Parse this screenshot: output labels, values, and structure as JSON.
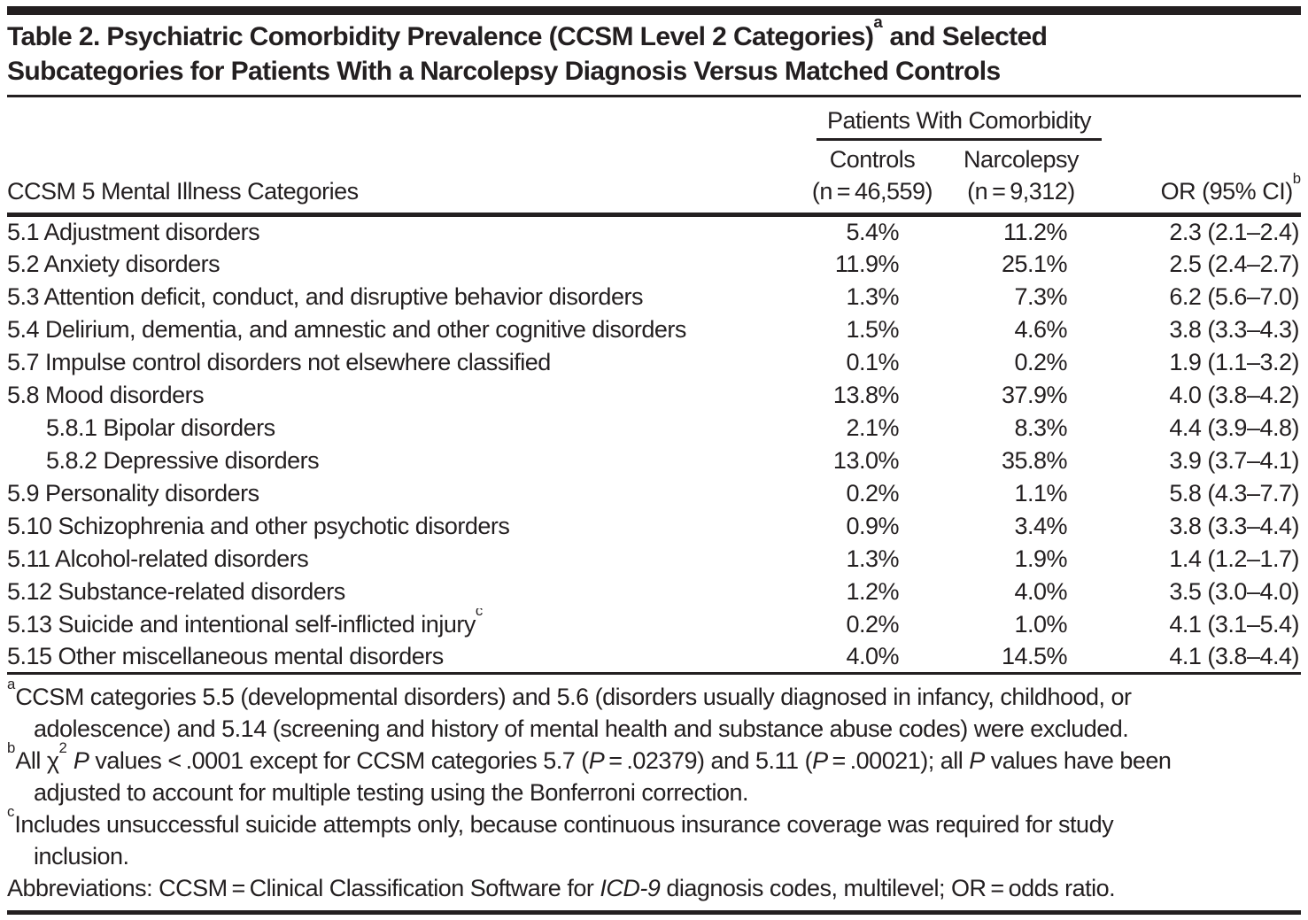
{
  "colors": {
    "text": "#231f20",
    "rule": "#231f20",
    "background": "#ffffff"
  },
  "title_rich": [
    {
      "t": "Table 2. Psychiatric Comorbidity Prevalence (CCSM Level 2 Categories)"
    },
    {
      "t": "a",
      "s": "sup"
    },
    {
      "t": " and Selected\nSubcategories for Patients With a Narcolepsy Diagnosis Versus Matched Controls"
    }
  ],
  "table": {
    "span_header": "Patients With Comorbidity",
    "category_header": "CCSM 5 Mental Illness Categories",
    "controls_header": {
      "line1": "Controls",
      "line2": "(n = 46,559)"
    },
    "narcolepsy_header": {
      "line1": "Narcolepsy",
      "line2": "(n = 9,312)"
    },
    "or_header_rich": [
      {
        "t": "OR (95% CI)"
      },
      {
        "t": "b",
        "s": "sup"
      }
    ],
    "rows": [
      {
        "category": "5.1 Adjustment disorders",
        "controls": "5.4%",
        "narcolepsy": "11.2%",
        "or": "2.3 (2.1–2.4)"
      },
      {
        "category": "5.2 Anxiety disorders",
        "controls": "11.9%",
        "narcolepsy": "25.1%",
        "or": "2.5 (2.4–2.7)"
      },
      {
        "category": "5.3 Attention deficit, conduct, and disruptive behavior disorders",
        "controls": "1.3%",
        "narcolepsy": "7.3%",
        "or": "6.2 (5.6–7.0)"
      },
      {
        "category": "5.4 Delirium, dementia, and amnestic and other cognitive disorders",
        "controls": "1.5%",
        "narcolepsy": "4.6%",
        "or": "3.8 (3.3–4.3)"
      },
      {
        "category": "5.7 Impulse control disorders not elsewhere classified",
        "controls": "0.1%",
        "narcolepsy": "0.2%",
        "or": "1.9 (1.1–3.2)"
      },
      {
        "category": "5.8 Mood disorders",
        "controls": "13.8%",
        "narcolepsy": "37.9%",
        "or": "4.0 (3.8–4.2)"
      },
      {
        "category": "5.8.1 Bipolar disorders",
        "controls": "2.1%",
        "narcolepsy": "8.3%",
        "or": "4.4 (3.9–4.8)"
      },
      {
        "category": "5.8.2 Depressive disorders",
        "controls": "13.0%",
        "narcolepsy": "35.8%",
        "or": "3.9 (3.7–4.1)"
      },
      {
        "category": "5.9 Personality disorders",
        "controls": "0.2%",
        "narcolepsy": "1.1%",
        "or": "5.8 (4.3–7.7)"
      },
      {
        "category": "5.10 Schizophrenia and other psychotic disorders",
        "controls": "0.9%",
        "narcolepsy": "3.4%",
        "or": "3.8 (3.3–4.4)"
      },
      {
        "category": "5.11 Alcohol-related disorders",
        "controls": "1.3%",
        "narcolepsy": "1.9%",
        "or": "1.4 (1.2–1.7)"
      },
      {
        "category": "5.12 Substance-related disorders",
        "controls": "1.2%",
        "narcolepsy": "4.0%",
        "or": "3.5 (3.0–4.0)"
      },
      {
        "category_rich": [
          {
            "t": "5.13 Suicide and intentional self-inflicted injury"
          },
          {
            "t": "c",
            "s": "sup"
          }
        ],
        "controls": "0.2%",
        "narcolepsy": "1.0%",
        "or": "4.1 (3.1–5.4)"
      },
      {
        "category": "5.15 Other miscellaneous mental disorders",
        "controls": "4.0%",
        "narcolepsy": "14.5%",
        "or": "4.1 (3.8–4.4)"
      }
    ]
  },
  "footnotes": {
    "a_rich": [
      {
        "t": "a",
        "s": "sup"
      },
      {
        "t": "CCSM categories 5.5 (developmental disorders) and 5.6 (disorders usually diagnosed in infancy, childhood, or\nadolescence) and 5.14 (screening and history of mental health and substance abuse codes) were excluded."
      }
    ],
    "b_rich": [
      {
        "t": "b",
        "s": "sup"
      },
      {
        "t": "All χ"
      },
      {
        "t": "2",
        "s": "sup"
      },
      {
        "t": " "
      },
      {
        "t": "P",
        "s": "i"
      },
      {
        "t": " values < .0001 except for CCSM categories 5.7 ("
      },
      {
        "t": "P",
        "s": "i"
      },
      {
        "t": " = .02379) and 5.11 ("
      },
      {
        "t": "P",
        "s": "i"
      },
      {
        "t": " = .00021); all "
      },
      {
        "t": "P",
        "s": "i"
      },
      {
        "t": " values have been\nadjusted to account for multiple testing using the Bonferroni correction."
      }
    ],
    "c_rich": [
      {
        "t": "c",
        "s": "sup"
      },
      {
        "t": "Includes unsuccessful suicide attempts only, because continuous insurance coverage was required for study\ninclusion."
      }
    ],
    "abbreviations_rich": [
      {
        "t": "Abbreviations: CCSM = Clinical Classification Software for "
      },
      {
        "t": "ICD-9",
        "s": "i"
      },
      {
        "t": " diagnosis codes, multilevel; OR = odds ratio."
      }
    ]
  }
}
